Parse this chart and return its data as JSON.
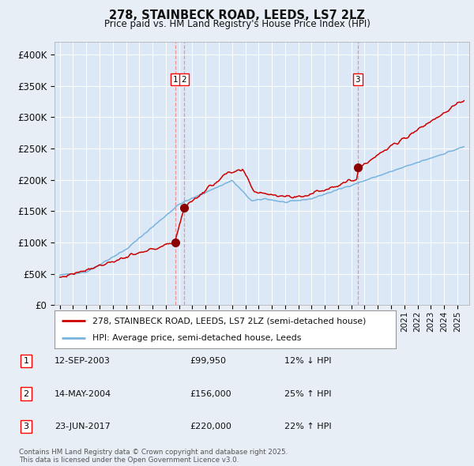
{
  "title": "278, STAINBECK ROAD, LEEDS, LS7 2LZ",
  "subtitle": "Price paid vs. HM Land Registry's House Price Index (HPI)",
  "legend_line1": "278, STAINBECK ROAD, LEEDS, LS7 2LZ (semi-detached house)",
  "legend_line2": "HPI: Average price, semi-detached house, Leeds",
  "footer1": "Contains HM Land Registry data © Crown copyright and database right 2025.",
  "footer2": "This data is licensed under the Open Government Licence v3.0.",
  "transactions": [
    {
      "label": "1",
      "date": "12-SEP-2003",
      "price_str": "£99,950",
      "hpi_pct": "12% ↓ HPI",
      "x_year": 2003.7,
      "price": 99950
    },
    {
      "label": "2",
      "date": "14-MAY-2004",
      "price_str": "£156,000",
      "hpi_pct": "25% ↑ HPI",
      "x_year": 2004.37,
      "price": 156000
    },
    {
      "label": "3",
      "date": "23-JUN-2017",
      "price_str": "£220,000",
      "hpi_pct": "22% ↑ HPI",
      "x_year": 2017.48,
      "price": 220000
    }
  ],
  "hpi_color": "#78b4e0",
  "price_color": "#cc0000",
  "marker_color": "#8b0000",
  "vline_color": "#ee8888",
  "bg_color": "#e8eef5",
  "plot_bg": "#dce8f5",
  "grid_color": "#ffffff",
  "text_color": "#111111",
  "ylim": [
    0,
    420000
  ],
  "yticks": [
    0,
    50000,
    100000,
    150000,
    200000,
    250000,
    300000,
    350000,
    400000
  ],
  "xlim_start": 1994.6,
  "xlim_end": 2025.9
}
